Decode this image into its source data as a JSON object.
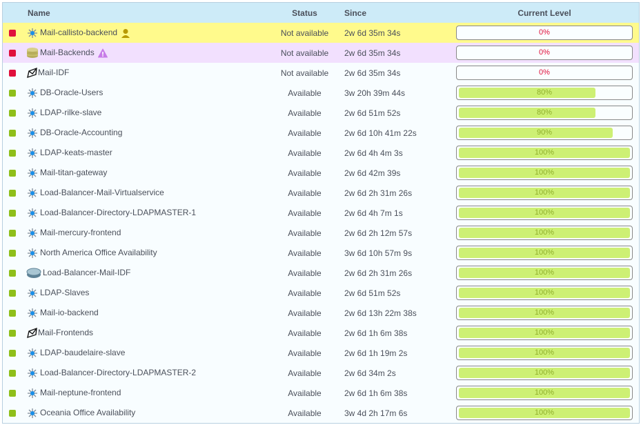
{
  "header": {
    "name": "Name",
    "status": "Status",
    "since": "Since",
    "level": "Current Level"
  },
  "colors": {
    "down": "#e0103c",
    "up": "#8fbf1a",
    "bar_fill": "#cdf074",
    "pct_down": "#e0103c",
    "pct_up": "#8fae2a"
  },
  "rows": [
    {
      "name": "Mail-callisto-backend",
      "icon": "service-icon",
      "badge": "user-icon",
      "status": "Not available",
      "since": "2w 6d 35m 34s",
      "level": 0,
      "level_label": "0%",
      "state": "down",
      "highlight": "yellow"
    },
    {
      "name": "Mail-Backends",
      "icon": "database-icon",
      "badge": "warning-icon",
      "status": "Not available",
      "since": "2w 6d 35m 34s",
      "level": 0,
      "level_label": "0%",
      "state": "down",
      "highlight": "purple"
    },
    {
      "name": "Mail-IDF",
      "icon": "group-icon",
      "status": "Not available",
      "since": "2w 6d 35m 34s",
      "level": 0,
      "level_label": "0%",
      "state": "down"
    },
    {
      "name": "DB-Oracle-Users",
      "icon": "service-icon",
      "status": "Available",
      "since": "3w 20h 39m 44s",
      "level": 80,
      "level_label": "80%",
      "state": "up"
    },
    {
      "name": "LDAP-rilke-slave",
      "icon": "service-icon",
      "status": "Available",
      "since": "2w 6d 51m 52s",
      "level": 80,
      "level_label": "80%",
      "state": "up"
    },
    {
      "name": "DB-Oracle-Accounting",
      "icon": "service-icon",
      "status": "Available",
      "since": "2w 6d 10h 41m 22s",
      "level": 90,
      "level_label": "90%",
      "state": "up"
    },
    {
      "name": "LDAP-keats-master",
      "icon": "service-icon",
      "status": "Available",
      "since": "2w 6d 4h 4m 3s",
      "level": 100,
      "level_label": "100%",
      "state": "up"
    },
    {
      "name": "Mail-titan-gateway",
      "icon": "service-icon",
      "status": "Available",
      "since": "2w 6d 42m 39s",
      "level": 100,
      "level_label": "100%",
      "state": "up"
    },
    {
      "name": "Load-Balancer-Mail-Virtualservice",
      "icon": "service-icon",
      "status": "Available",
      "since": "2w 6d 2h 31m 26s",
      "level": 100,
      "level_label": "100%",
      "state": "up"
    },
    {
      "name": "Load-Balancer-Directory-LDAPMASTER-1",
      "icon": "service-icon",
      "status": "Available",
      "since": "2w 6d 4h 7m 1s",
      "level": 100,
      "level_label": "100%",
      "state": "up"
    },
    {
      "name": "Mail-mercury-frontend",
      "icon": "service-icon",
      "status": "Available",
      "since": "2w 6d 2h 12m 57s",
      "level": 100,
      "level_label": "100%",
      "state": "up"
    },
    {
      "name": "North America Office Availability",
      "icon": "service-icon",
      "status": "Available",
      "since": "3w 6d 10h 57m 9s",
      "level": 100,
      "level_label": "100%",
      "state": "up"
    },
    {
      "name": "Load-Balancer-Mail-IDF",
      "icon": "router-icon",
      "status": "Available",
      "since": "2w 6d 2h 31m 26s",
      "level": 100,
      "level_label": "100%",
      "state": "up"
    },
    {
      "name": "LDAP-Slaves",
      "icon": "service-icon",
      "status": "Available",
      "since": "2w 6d 51m 52s",
      "level": 100,
      "level_label": "100%",
      "state": "up"
    },
    {
      "name": "Mail-io-backend",
      "icon": "service-icon",
      "status": "Available",
      "since": "2w 6d 13h 22m 38s",
      "level": 100,
      "level_label": "100%",
      "state": "up"
    },
    {
      "name": "Mail-Frontends",
      "icon": "group-icon",
      "status": "Available",
      "since": "2w 6d 1h 6m 38s",
      "level": 100,
      "level_label": "100%",
      "state": "up"
    },
    {
      "name": "LDAP-baudelaire-slave",
      "icon": "service-icon",
      "status": "Available",
      "since": "2w 6d 1h 19m 2s",
      "level": 100,
      "level_label": "100%",
      "state": "up"
    },
    {
      "name": "Load-Balancer-Directory-LDAPMASTER-2",
      "icon": "service-icon",
      "status": "Available",
      "since": "2w 6d 34m 2s",
      "level": 100,
      "level_label": "100%",
      "state": "up"
    },
    {
      "name": "Mail-neptune-frontend",
      "icon": "service-icon",
      "status": "Available",
      "since": "2w 6d 1h 6m 38s",
      "level": 100,
      "level_label": "100%",
      "state": "up"
    },
    {
      "name": "Oceania Office Availability",
      "icon": "service-icon",
      "status": "Available",
      "since": "3w 4d 2h 17m 6s",
      "level": 100,
      "level_label": "100%",
      "state": "up"
    }
  ]
}
